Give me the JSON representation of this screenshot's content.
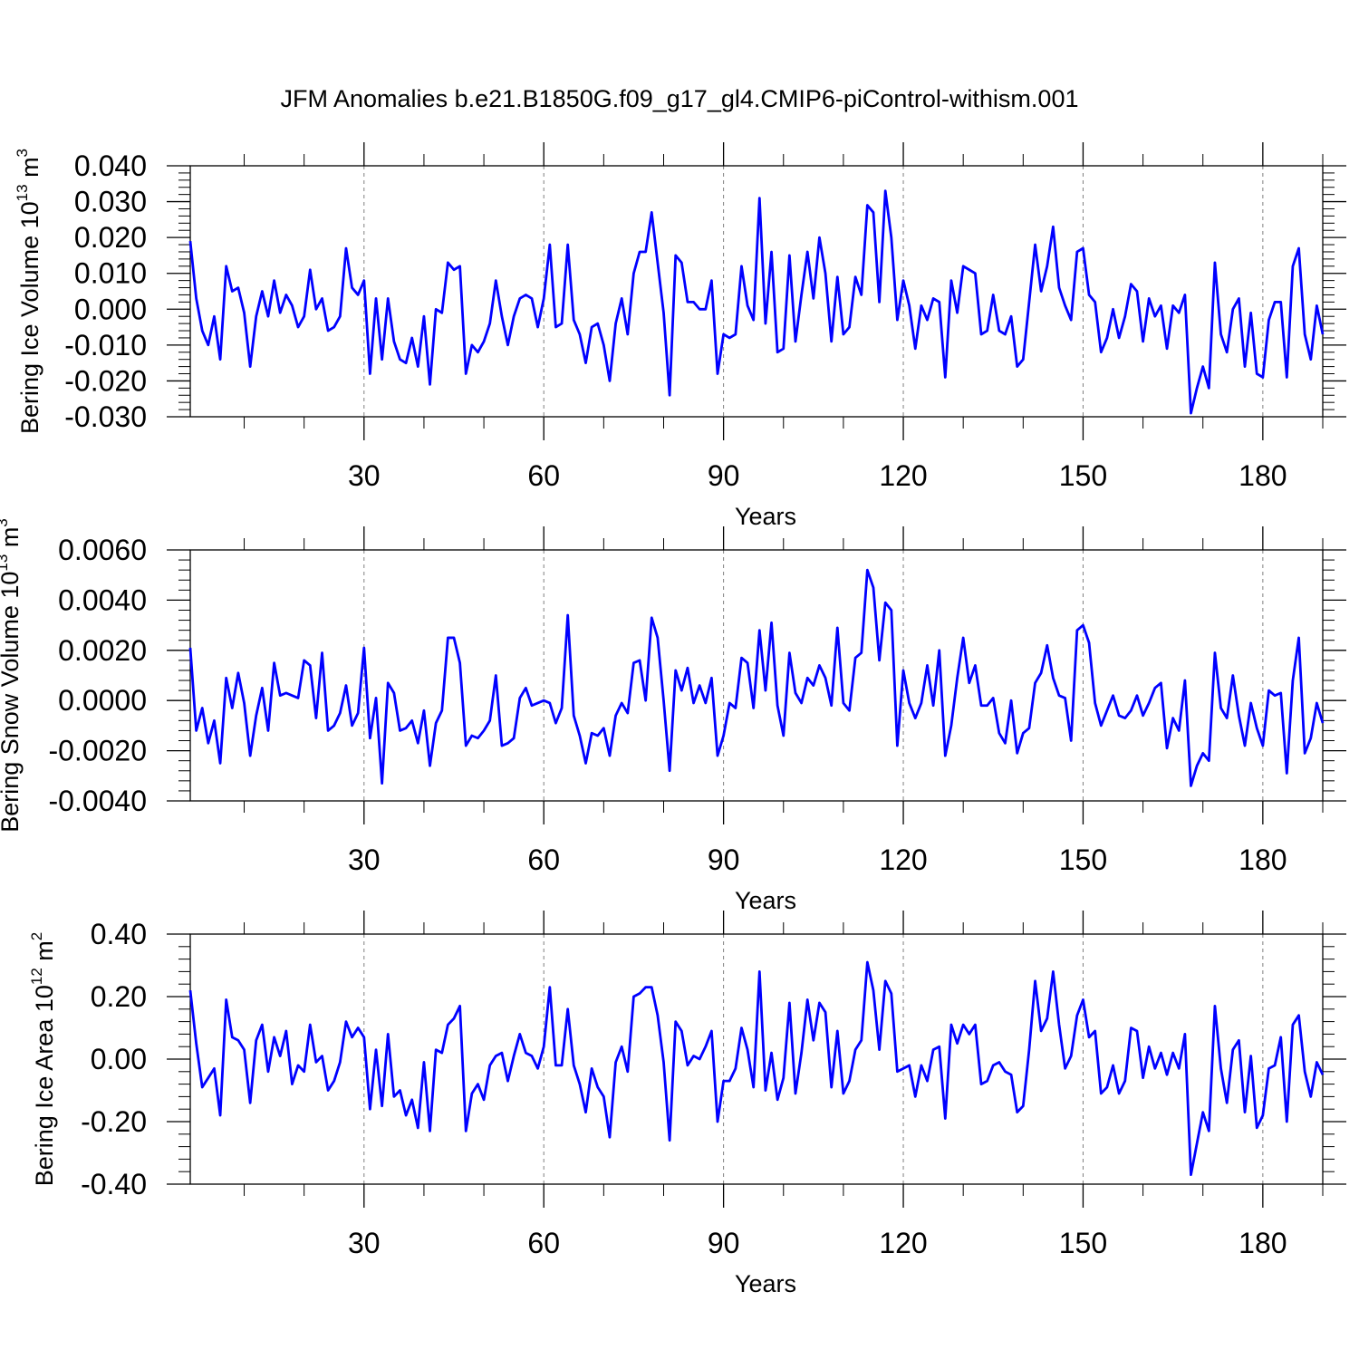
{
  "title": "JFM Anomalies b.e21.B1850G.f09_g17_gl4.CMIP6-piControl-withism.001",
  "line_color": "#0000ff",
  "chart_data": [
    {
      "type": "line",
      "ylabel_main": "Bering Ice Volume 10",
      "ylabel_exp": "13",
      "ylabel_unit": " m",
      "ylabel_unit_exp": "3",
      "xlabel": "Years",
      "xlim": [
        1,
        190
      ],
      "ylim": [
        -0.03,
        0.04
      ],
      "yticks": [
        -0.03,
        -0.02,
        -0.01,
        0.0,
        0.01,
        0.02,
        0.03,
        0.04
      ],
      "ytick_labels": [
        "-0.030",
        "-0.020",
        "-0.010",
        "0.000",
        "0.010",
        "0.020",
        "0.030",
        "0.040"
      ],
      "xticks": [
        30,
        60,
        90,
        120,
        150,
        180
      ],
      "xtick_labels": [
        "30",
        "60",
        "90",
        "120",
        "150",
        "180"
      ],
      "values": [
        0.019,
        0.003,
        -0.006,
        -0.01,
        -0.002,
        -0.014,
        0.012,
        0.005,
        0.006,
        -0.001,
        -0.016,
        -0.002,
        0.005,
        -0.002,
        0.008,
        -0.001,
        0.004,
        0.001,
        -0.005,
        -0.002,
        0.011,
        0.0,
        0.003,
        -0.006,
        -0.005,
        -0.002,
        0.017,
        0.006,
        0.004,
        0.008,
        -0.018,
        0.003,
        -0.014,
        0.003,
        -0.009,
        -0.014,
        -0.015,
        -0.008,
        -0.016,
        -0.002,
        -0.021,
        0.0,
        -0.001,
        0.013,
        0.011,
        0.012,
        -0.018,
        -0.01,
        -0.012,
        -0.009,
        -0.004,
        0.008,
        -0.002,
        -0.01,
        -0.002,
        0.003,
        0.004,
        0.003,
        -0.005,
        0.003,
        0.018,
        -0.005,
        -0.004,
        0.018,
        -0.003,
        -0.007,
        -0.015,
        -0.005,
        -0.004,
        -0.01,
        -0.02,
        -0.004,
        0.003,
        -0.007,
        0.01,
        0.016,
        0.016,
        0.027,
        0.013,
        -0.001,
        -0.024,
        0.015,
        0.013,
        0.002,
        0.002,
        0.0,
        0.0,
        0.008,
        -0.018,
        -0.007,
        -0.008,
        -0.007,
        0.012,
        0.001,
        -0.003,
        0.031,
        -0.004,
        0.016,
        -0.012,
        -0.011,
        0.015,
        -0.009,
        0.004,
        0.016,
        0.003,
        0.02,
        0.01,
        -0.009,
        0.009,
        -0.007,
        -0.005,
        0.009,
        0.004,
        0.029,
        0.027,
        0.002,
        0.033,
        0.02,
        -0.003,
        0.008,
        0.001,
        -0.011,
        0.001,
        -0.003,
        0.003,
        0.002,
        -0.019,
        0.008,
        -0.001,
        0.012,
        0.011,
        0.01,
        -0.007,
        -0.006,
        0.004,
        -0.006,
        -0.007,
        -0.002,
        -0.016,
        -0.014,
        0.002,
        0.018,
        0.005,
        0.012,
        0.023,
        0.006,
        0.001,
        -0.003,
        0.016,
        0.017,
        0.004,
        0.002,
        -0.012,
        -0.008,
        0.0,
        -0.008,
        -0.002,
        0.007,
        0.005,
        -0.009,
        0.003,
        -0.002,
        0.001,
        -0.011,
        0.001,
        -0.001,
        0.004,
        -0.029,
        -0.022,
        -0.016,
        -0.022,
        0.013,
        -0.007,
        -0.012,
        0.0,
        0.003,
        -0.016,
        -0.001,
        -0.018,
        -0.019,
        -0.003,
        0.002,
        0.002,
        -0.019,
        0.012,
        0.017,
        -0.007,
        -0.014,
        0.001,
        -0.007
      ]
    },
    {
      "type": "line",
      "ylabel_main": "Bering Snow Volume 10",
      "ylabel_exp": "13",
      "ylabel_unit": " m",
      "ylabel_unit_exp": "3",
      "xlabel": "Years",
      "xlim": [
        1,
        190
      ],
      "ylim": [
        -0.004,
        0.006
      ],
      "yticks": [
        -0.004,
        -0.002,
        0.0,
        0.002,
        0.004,
        0.006
      ],
      "ytick_labels": [
        "-0.0040",
        "-0.0020",
        "0.0000",
        "0.0020",
        "0.0040",
        "0.0060"
      ],
      "xticks": [
        30,
        60,
        90,
        120,
        150,
        180
      ],
      "xtick_labels": [
        "30",
        "60",
        "90",
        "120",
        "150",
        "180"
      ],
      "values": [
        0.0021,
        -0.0012,
        -0.0003,
        -0.0017,
        -0.0008,
        -0.0025,
        0.0009,
        -0.0003,
        0.0011,
        -0.0001,
        -0.0022,
        -0.0006,
        0.0005,
        -0.0012,
        0.0015,
        0.0002,
        0.0003,
        0.0002,
        0.0001,
        0.0016,
        0.0014,
        -0.0007,
        0.0019,
        -0.0012,
        -0.001,
        -0.0005,
        0.0006,
        -0.001,
        -0.0005,
        0.0021,
        -0.0015,
        0.0001,
        -0.0033,
        0.0007,
        0.0003,
        -0.0012,
        -0.0011,
        -0.0008,
        -0.0017,
        -0.0004,
        -0.0026,
        -0.0009,
        -0.0004,
        0.0025,
        0.0025,
        0.0015,
        -0.0018,
        -0.0014,
        -0.0015,
        -0.0012,
        -0.0008,
        0.001,
        -0.0018,
        -0.0017,
        -0.0015,
        0.0001,
        0.0005,
        -0.0002,
        -0.0001,
        0.0,
        -0.0001,
        -0.0009,
        -0.0003,
        0.0034,
        -0.0006,
        -0.0014,
        -0.0025,
        -0.0013,
        -0.0014,
        -0.0011,
        -0.0022,
        -0.0006,
        -0.0001,
        -0.0005,
        0.0015,
        0.0016,
        -0.0,
        0.0033,
        0.0025,
        0.0,
        -0.0028,
        0.0012,
        0.0004,
        0.0013,
        -0.0001,
        0.0006,
        -0.0001,
        0.0009,
        -0.0022,
        -0.0014,
        -0.0001,
        -0.0003,
        0.0017,
        0.0015,
        -0.0003,
        0.0028,
        0.0004,
        0.0031,
        -0.0002,
        -0.0014,
        0.0019,
        0.0003,
        -0.0001,
        0.0009,
        0.0006,
        0.0014,
        0.0009,
        -0.0002,
        0.0029,
        -0.0001,
        -0.0004,
        0.0017,
        0.0019,
        0.0052,
        0.0045,
        0.0016,
        0.0039,
        0.0036,
        -0.0018,
        0.0012,
        -0.0001,
        -0.0007,
        -0.0001,
        0.0014,
        -0.0002,
        0.002,
        -0.0022,
        -0.001,
        0.0009,
        0.0025,
        0.0007,
        0.0014,
        -0.0002,
        -0.0002,
        0.0001,
        -0.0013,
        -0.0017,
        -0.0,
        -0.0021,
        -0.0013,
        -0.0011,
        0.0007,
        0.0011,
        0.0022,
        0.0009,
        0.0002,
        0.0001,
        -0.0016,
        0.0028,
        0.003,
        0.0023,
        -0.0001,
        -0.001,
        -0.0004,
        0.0002,
        -0.0006,
        -0.0007,
        -0.0004,
        0.0002,
        -0.0006,
        -0.0001,
        0.0005,
        0.0007,
        -0.0019,
        -0.0007,
        -0.0012,
        0.0008,
        -0.0034,
        -0.0026,
        -0.0021,
        -0.0024,
        0.0019,
        -0.0003,
        -0.0007,
        0.001,
        -0.0006,
        -0.0018,
        -0.0001,
        -0.0011,
        -0.0018,
        0.0004,
        0.0002,
        0.0003,
        -0.0029,
        0.0008,
        0.0025,
        -0.0021,
        -0.0015,
        -0.0001,
        -0.0009
      ]
    },
    {
      "type": "line",
      "ylabel_main": "Bering Ice Area 10",
      "ylabel_exp": "12",
      "ylabel_unit": " m",
      "ylabel_unit_exp": "2",
      "xlabel": "Years",
      "xlim": [
        1,
        190
      ],
      "ylim": [
        -0.4,
        0.4
      ],
      "yticks": [
        -0.4,
        -0.2,
        0.0,
        0.2,
        0.4
      ],
      "ytick_labels": [
        "-0.40",
        "-0.20",
        "0.00",
        "0.20",
        "0.40"
      ],
      "xticks": [
        30,
        60,
        90,
        120,
        150,
        180
      ],
      "xtick_labels": [
        "30",
        "60",
        "90",
        "120",
        "150",
        "180"
      ],
      "values": [
        0.22,
        0.05,
        -0.09,
        -0.06,
        -0.03,
        -0.18,
        0.19,
        0.07,
        0.06,
        0.03,
        -0.14,
        0.06,
        0.11,
        -0.04,
        0.07,
        0.01,
        0.09,
        -0.08,
        -0.02,
        -0.04,
        0.11,
        -0.01,
        0.01,
        -0.1,
        -0.07,
        -0.01,
        0.12,
        0.07,
        0.1,
        0.07,
        -0.16,
        0.03,
        -0.15,
        0.08,
        -0.12,
        -0.1,
        -0.18,
        -0.13,
        -0.22,
        -0.01,
        -0.23,
        0.03,
        0.02,
        0.11,
        0.13,
        0.17,
        -0.23,
        -0.11,
        -0.08,
        -0.13,
        -0.02,
        0.01,
        0.02,
        -0.07,
        0.01,
        0.08,
        0.02,
        0.01,
        -0.03,
        0.04,
        0.23,
        -0.02,
        -0.02,
        0.16,
        -0.02,
        -0.08,
        -0.17,
        -0.03,
        -0.09,
        -0.12,
        -0.25,
        -0.01,
        0.04,
        -0.04,
        0.2,
        0.21,
        0.23,
        0.23,
        0.14,
        -0.01,
        -0.26,
        0.12,
        0.09,
        -0.02,
        0.01,
        0.0,
        0.04,
        0.09,
        -0.2,
        -0.07,
        -0.07,
        -0.03,
        0.1,
        0.03,
        -0.09,
        0.28,
        -0.1,
        0.02,
        -0.13,
        -0.06,
        0.18,
        -0.11,
        0.02,
        0.19,
        0.06,
        0.18,
        0.15,
        -0.09,
        0.09,
        -0.11,
        -0.07,
        0.03,
        0.06,
        0.31,
        0.22,
        0.03,
        0.25,
        0.21,
        -0.04,
        -0.03,
        -0.02,
        -0.12,
        -0.02,
        -0.07,
        0.03,
        0.04,
        -0.19,
        0.11,
        0.05,
        0.11,
        0.08,
        0.11,
        -0.08,
        -0.07,
        -0.02,
        -0.01,
        -0.04,
        -0.05,
        -0.17,
        -0.15,
        0.03,
        0.25,
        0.09,
        0.13,
        0.28,
        0.11,
        -0.03,
        0.01,
        0.14,
        0.19,
        0.07,
        0.09,
        -0.11,
        -0.09,
        -0.02,
        -0.11,
        -0.07,
        0.1,
        0.09,
        -0.06,
        0.04,
        -0.03,
        0.02,
        -0.05,
        0.02,
        -0.03,
        0.08,
        -0.37,
        -0.27,
        -0.17,
        -0.23,
        0.17,
        -0.03,
        -0.14,
        0.03,
        0.06,
        -0.17,
        0.01,
        -0.22,
        -0.18,
        -0.03,
        -0.02,
        0.07,
        -0.2,
        0.11,
        0.14,
        -0.04,
        -0.12,
        -0.01,
        -0.05
      ]
    }
  ]
}
